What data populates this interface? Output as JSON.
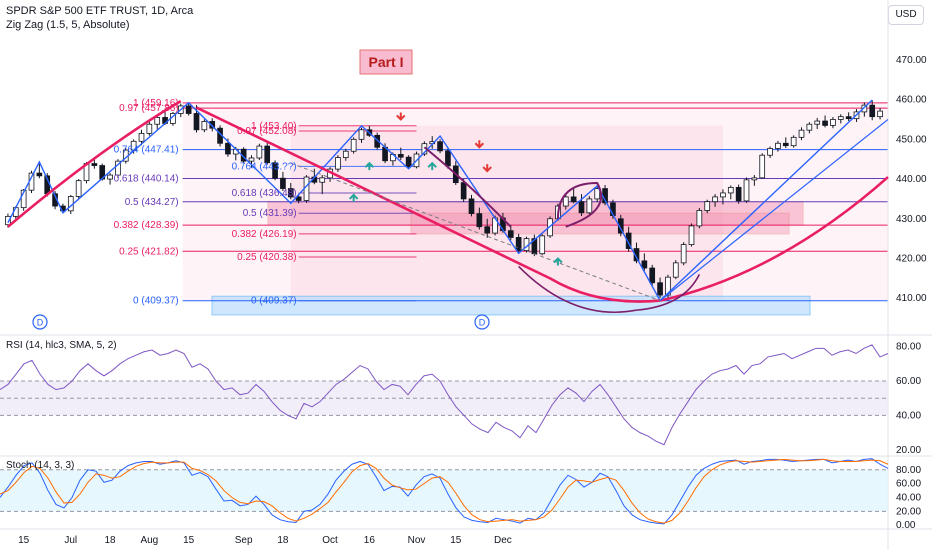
{
  "header": {
    "title": "SPDR S&P 500 ETF TRUST, 1D, Arca",
    "indicator": "Zig Zag (1.5, 5, Absolute)",
    "currency_button": "USD"
  },
  "annotation": {
    "part_label": "Part I",
    "dividend_marker": "D"
  },
  "chart_data": [
    {
      "type": "candlestick",
      "title": "SPDR S&P 500 ETF TRUST, 1D, Arca",
      "y_ticks": [
        410,
        420,
        430,
        440,
        450,
        460,
        470
      ],
      "y_tick_labels": [
        "410.00",
        "420.00",
        "430.00",
        "440.00",
        "450.00",
        "460.00",
        "470.00"
      ],
      "ylim": [
        402,
        475
      ],
      "x_tick_labels": [
        "15",
        "Jul",
        "18",
        "Aug",
        "15",
        "Sep",
        "18",
        "Oct",
        "16",
        "Nov",
        "15",
        "Dec"
      ],
      "x_ticks_idx": [
        2,
        8,
        13,
        18,
        23,
        30,
        35,
        41,
        46,
        52,
        57,
        63
      ],
      "candles": [
        [
          428.5,
          431.3,
          427.8,
          430.6
        ],
        [
          430.6,
          433.2,
          429.9,
          432.8
        ],
        [
          432.8,
          437.5,
          432.0,
          437.2
        ],
        [
          437.2,
          442.1,
          436.5,
          441.5
        ],
        [
          441.5,
          444.3,
          440.2,
          440.8
        ],
        [
          440.8,
          441.5,
          435.6,
          436.3
        ],
        [
          436.3,
          437.0,
          432.4,
          433.2
        ],
        [
          433.2,
          433.8,
          431.5,
          432.0
        ],
        [
          432.0,
          436.0,
          431.2,
          435.6
        ],
        [
          435.6,
          440.0,
          435.0,
          439.6
        ],
        [
          439.6,
          444.3,
          438.9,
          443.9
        ],
        [
          443.9,
          445.2,
          442.6,
          443.4
        ],
        [
          443.4,
          443.9,
          439.6,
          440.0
        ],
        [
          440.0,
          441.5,
          438.6,
          441.0
        ],
        [
          441.0,
          445.0,
          440.3,
          444.5
        ],
        [
          444.5,
          447.8,
          443.9,
          447.3
        ],
        [
          447.3,
          450.0,
          446.4,
          449.5
        ],
        [
          449.5,
          452.4,
          448.5,
          451.5
        ],
        [
          451.5,
          454.7,
          450.9,
          453.8
        ],
        [
          453.8,
          456.0,
          452.5,
          455.5
        ],
        [
          455.5,
          457.0,
          453.6,
          454.0
        ],
        [
          454.0,
          456.9,
          453.4,
          456.5
        ],
        [
          456.5,
          459.0,
          455.6,
          458.4
        ],
        [
          458.4,
          459.2,
          456.0,
          456.5
        ],
        [
          456.5,
          458.6,
          451.7,
          452.4
        ],
        [
          452.4,
          455.0,
          451.8,
          454.5
        ],
        [
          454.5,
          455.3,
          452.0,
          452.8
        ],
        [
          452.8,
          453.5,
          448.2,
          449.0
        ],
        [
          449.0,
          450.2,
          445.6,
          446.3
        ],
        [
          446.3,
          448.1,
          444.7,
          447.5
        ],
        [
          447.5,
          448.0,
          443.9,
          444.5
        ],
        [
          444.5,
          446.0,
          442.8,
          445.3
        ],
        [
          445.3,
          448.9,
          444.8,
          448.3
        ],
        [
          448.3,
          449.5,
          443.6,
          444.1
        ],
        [
          444.1,
          444.7,
          439.7,
          440.2
        ],
        [
          440.2,
          441.8,
          437.0,
          437.6
        ],
        [
          437.6,
          439.0,
          434.9,
          435.5
        ],
        [
          435.5,
          436.3,
          433.9,
          434.6
        ],
        [
          434.6,
          441.0,
          434.0,
          440.5
        ],
        [
          440.5,
          442.6,
          438.7,
          439.2
        ],
        [
          439.2,
          441.0,
          436.2,
          440.3
        ],
        [
          440.3,
          443.0,
          439.3,
          442.5
        ],
        [
          442.5,
          446.0,
          441.8,
          445.4
        ],
        [
          445.4,
          447.6,
          444.6,
          447.0
        ],
        [
          447.0,
          450.5,
          446.4,
          450.0
        ],
        [
          450.0,
          452.9,
          449.1,
          452.4
        ],
        [
          452.4,
          453.4,
          450.6,
          451.0
        ],
        [
          451.0,
          451.7,
          447.4,
          448.0
        ],
        [
          448.0,
          449.0,
          444.0,
          444.6
        ],
        [
          444.6,
          446.7,
          443.4,
          446.2
        ],
        [
          446.2,
          447.9,
          444.8,
          445.5
        ],
        [
          445.5,
          446.0,
          442.6,
          443.1
        ],
        [
          443.1,
          446.9,
          442.7,
          446.3
        ],
        [
          446.3,
          449.5,
          445.8,
          448.9
        ],
        [
          448.9,
          450.8,
          447.6,
          449.4
        ],
        [
          449.4,
          450.0,
          446.5,
          447.1
        ],
        [
          447.1,
          447.8,
          442.6,
          443.3
        ],
        [
          443.3,
          444.5,
          438.5,
          439.1
        ],
        [
          439.1,
          440.0,
          434.2,
          435.0
        ],
        [
          435.0,
          436.0,
          430.6,
          431.3
        ],
        [
          431.3,
          432.8,
          427.3,
          428.0
        ],
        [
          428.0,
          430.0,
          425.2,
          426.4
        ],
        [
          426.4,
          430.8,
          425.8,
          430.2
        ],
        [
          430.2,
          431.5,
          426.5,
          427.0
        ],
        [
          427.0,
          428.5,
          424.6,
          425.3
        ],
        [
          425.3,
          426.2,
          421.3,
          422.0
        ],
        [
          422.0,
          425.5,
          421.5,
          425.0
        ],
        [
          425.0,
          426.0,
          420.6,
          421.2
        ],
        [
          421.2,
          426.1,
          420.8,
          425.7
        ],
        [
          425.7,
          430.6,
          425.2,
          430.0
        ],
        [
          430.0,
          433.8,
          429.5,
          433.2
        ],
        [
          433.2,
          436.0,
          432.3,
          435.5
        ],
        [
          435.5,
          437.6,
          433.9,
          434.3
        ],
        [
          434.3,
          436.2,
          430.7,
          431.5
        ],
        [
          431.5,
          435.7,
          431.0,
          435.0
        ],
        [
          435.0,
          438.3,
          434.2,
          437.6
        ],
        [
          437.6,
          438.5,
          433.4,
          434.0
        ],
        [
          434.0,
          434.8,
          430.0,
          430.8
        ],
        [
          430.0,
          431.0,
          425.6,
          426.4
        ],
        [
          426.4,
          428.0,
          421.7,
          422.5
        ],
        [
          422.5,
          424.0,
          418.8,
          419.4
        ],
        [
          419.4,
          421.3,
          416.9,
          417.6
        ],
        [
          417.6,
          418.4,
          413.1,
          413.9
        ],
        [
          413.9,
          415.2,
          410.1,
          410.8
        ],
        [
          410.8,
          415.9,
          409.4,
          415.3
        ],
        [
          415.3,
          419.6,
          414.8,
          418.9
        ],
        [
          418.9,
          424.1,
          418.3,
          423.5
        ],
        [
          423.5,
          428.8,
          423.0,
          428.2
        ],
        [
          428.2,
          432.7,
          427.6,
          432.1
        ],
        [
          432.1,
          434.8,
          431.4,
          434.3
        ],
        [
          434.3,
          436.2,
          433.0,
          435.5
        ],
        [
          435.5,
          437.4,
          433.6,
          436.5
        ],
        [
          436.5,
          438.4,
          434.9,
          437.9
        ],
        [
          437.9,
          438.6,
          433.8,
          434.5
        ],
        [
          434.5,
          440.4,
          434.0,
          439.8
        ],
        [
          439.8,
          441.0,
          438.3,
          440.3
        ],
        [
          440.3,
          446.5,
          440.0,
          446.0
        ],
        [
          446.0,
          448.2,
          445.3,
          447.7
        ],
        [
          447.7,
          449.6,
          446.9,
          449.0
        ],
        [
          449.0,
          450.5,
          447.8,
          448.4
        ],
        [
          448.4,
          451.0,
          447.9,
          450.5
        ],
        [
          450.5,
          453.0,
          449.8,
          452.3
        ],
        [
          452.3,
          454.3,
          451.5,
          453.8
        ],
        [
          453.8,
          455.4,
          452.6,
          454.6
        ],
        [
          454.6,
          456.0,
          453.0,
          453.5
        ],
        [
          453.5,
          455.6,
          452.8,
          455.0
        ],
        [
          455.0,
          456.3,
          454.0,
          455.7
        ],
        [
          455.7,
          456.8,
          454.6,
          455.2
        ],
        [
          455.2,
          457.6,
          454.4,
          456.9
        ],
        [
          456.9,
          459.3,
          455.7,
          458.6
        ],
        [
          458.6,
          459.9,
          454.8,
          455.7
        ],
        [
          455.7,
          457.9,
          455.0,
          457.1
        ]
      ],
      "zigzag": [
        [
          0,
          429
        ],
        [
          4,
          444.3
        ],
        [
          7,
          431.5
        ],
        [
          23,
          459.2
        ],
        [
          36,
          433.9
        ],
        [
          45,
          453.4
        ],
        [
          51,
          442.6
        ],
        [
          55,
          450.8
        ],
        [
          65,
          421.3
        ],
        [
          75,
          438.3
        ],
        [
          83,
          409.4
        ],
        [
          110,
          459.9
        ]
      ],
      "fib_levels": [
        {
          "label": "1 (459.16)",
          "value": 459.16
        },
        {
          "label": "0.97 (457.86)",
          "value": 457.86
        },
        {
          "label": "0.764 (447.41)",
          "value": 447.41
        },
        {
          "label": "0.618 (440.14)",
          "value": 440.14
        },
        {
          "label": "0.5 (434.27)",
          "value": 434.27
        },
        {
          "label": "0.382 (428.39)",
          "value": 428.39
        },
        {
          "label": "0.25 (421.82)",
          "value": 421.82
        },
        {
          "label": "0 (409.37)",
          "value": 409.37
        }
      ],
      "fib_levels_2": [
        {
          "label": "1 (453.40)",
          "value": 453.4
        },
        {
          "label": "0.97 (452.08)",
          "value": 452.08
        },
        {
          "label": "0.764 (443.??)",
          "value": 443.2
        },
        {
          "label": "0.618 (436.48)",
          "value": 436.48
        },
        {
          "label": "0.5 (431.39)",
          "value": 431.39
        },
        {
          "label": "0.382 (426.19)",
          "value": 426.19
        },
        {
          "label": "0.25 (420.38)",
          "value": 420.38
        },
        {
          "label": "0 (409.37)",
          "value": 409.37
        }
      ]
    },
    {
      "type": "line",
      "title": "RSI (14, hlc3, SMA, 5, 2)",
      "y_tick_labels": [
        "20.00",
        "40.00",
        "60.00",
        "80.00"
      ],
      "y_ticks": [
        20,
        40,
        60,
        80
      ],
      "ylim": [
        17,
        85
      ],
      "band": [
        40,
        60
      ],
      "values": [
        55,
        58,
        64,
        70,
        72,
        64,
        58,
        55,
        56,
        60,
        66,
        70,
        66,
        63,
        66,
        70,
        73,
        75,
        77,
        78,
        75,
        76,
        78,
        76,
        68,
        70,
        67,
        60,
        55,
        56,
        52,
        53,
        58,
        54,
        48,
        43,
        40,
        38,
        47,
        45,
        48,
        53,
        58,
        61,
        65,
        69,
        67,
        60,
        55,
        58,
        57,
        52,
        58,
        63,
        64,
        60,
        52,
        45,
        40,
        35,
        32,
        30,
        36,
        33,
        31,
        27,
        34,
        30,
        38,
        46,
        52,
        56,
        53,
        48,
        54,
        58,
        52,
        45,
        38,
        33,
        30,
        28,
        25,
        23,
        33,
        41,
        48,
        55,
        60,
        64,
        66,
        67,
        69,
        64,
        69,
        70,
        74,
        75,
        76,
        73,
        75,
        77,
        79,
        79,
        75,
        77,
        78,
        76,
        79,
        81,
        74,
        76
      ]
    },
    {
      "type": "line",
      "title": "Stoch (14, 3, 3)",
      "y_tick_labels": [
        "0.00",
        "20.00",
        "40.00",
        "60.00",
        "80.00"
      ],
      "y_ticks": [
        0,
        20,
        40,
        60,
        80
      ],
      "ylim": [
        -4,
        97
      ],
      "band": [
        20,
        80
      ],
      "series": [
        {
          "values": [
            40,
            55,
            72,
            86,
            90,
            75,
            50,
            30,
            25,
            40,
            65,
            80,
            78,
            62,
            65,
            78,
            86,
            90,
            92,
            92,
            88,
            90,
            93,
            90,
            72,
            76,
            70,
            52,
            35,
            36,
            28,
            30,
            42,
            30,
            15,
            8,
            5,
            4,
            20,
            22,
            30,
            45,
            65,
            78,
            88,
            92,
            88,
            70,
            50,
            56,
            55,
            42,
            58,
            70,
            74,
            68,
            45,
            25,
            12,
            7,
            5,
            4,
            10,
            8,
            6,
            3,
            10,
            8,
            18,
            38,
            58,
            72,
            66,
            55,
            62,
            75,
            70,
            50,
            28,
            15,
            8,
            5,
            3,
            2,
            15,
            35,
            55,
            72,
            82,
            88,
            92,
            93,
            94,
            88,
            92,
            93,
            95,
            95,
            94,
            92,
            93,
            94,
            95,
            95,
            90,
            92,
            94,
            92,
            95,
            96,
            88,
            82
          ]
        },
        {
          "values": [
            45,
            50,
            62,
            76,
            85,
            82,
            68,
            48,
            32,
            33,
            45,
            62,
            74,
            72,
            68,
            70,
            78,
            85,
            89,
            91,
            90,
            90,
            91,
            91,
            82,
            79,
            73,
            64,
            50,
            40,
            33,
            31,
            35,
            34,
            28,
            18,
            10,
            6,
            10,
            16,
            24,
            33,
            48,
            62,
            77,
            86,
            89,
            82,
            68,
            58,
            54,
            51,
            52,
            60,
            68,
            70,
            62,
            46,
            28,
            15,
            8,
            5,
            6,
            7,
            8,
            6,
            7,
            8,
            12,
            22,
            38,
            55,
            65,
            64,
            62,
            66,
            69,
            65,
            50,
            32,
            18,
            9,
            5,
            3,
            7,
            18,
            35,
            54,
            70,
            80,
            87,
            91,
            93,
            92,
            91,
            92,
            93,
            94,
            95,
            94,
            93,
            93,
            94,
            95,
            93,
            92,
            92,
            92,
            93,
            94,
            93,
            88
          ]
        }
      ]
    }
  ]
}
